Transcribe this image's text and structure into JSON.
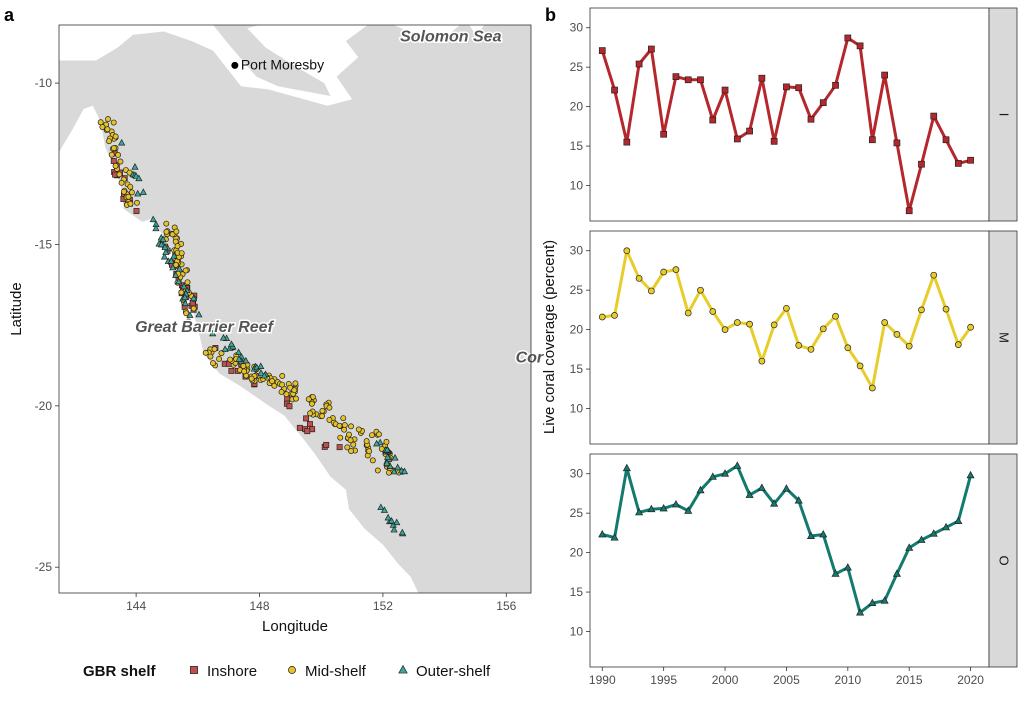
{
  "panels": {
    "a": "a",
    "b": "b"
  },
  "map": {
    "xlabel": "Longitude",
    "ylabel": "Latitude",
    "xlim": [
      141.5,
      156.8
    ],
    "ylim": [
      -25.8,
      -8.2
    ],
    "x_ticks": [
      144,
      148,
      152,
      156
    ],
    "y_ticks": [
      -10,
      -15,
      -20,
      -25
    ],
    "city": {
      "name": "Port Moresby",
      "lon": 147.2,
      "lat": -9.45
    },
    "labels": [
      {
        "text": "Solomon Sea",
        "lon": 154.2,
        "lat": -8.55
      },
      {
        "text": "Great Barrier Reef",
        "lon": 146.2,
        "lat": -17.55
      },
      {
        "text": "Cor",
        "lon": 156.3,
        "lat": -18.5
      }
    ],
    "colors": {
      "sea": "#d9d9d9",
      "land": "#ffffff"
    }
  },
  "legend": {
    "title": "GBR shelf",
    "items": [
      {
        "label": "Inshore",
        "shape": "square",
        "color": "#c0504d"
      },
      {
        "label": "Mid-shelf",
        "shape": "circle",
        "color": "#e6c229"
      },
      {
        "label": "Outer-shelf",
        "shape": "triangle",
        "color": "#3aa89a"
      }
    ]
  },
  "chart_data": {
    "type": "line",
    "ylabel": "Live coral coverage (percent)",
    "xlim": [
      1989,
      2021.5
    ],
    "x_ticks": [
      1990,
      1995,
      2000,
      2005,
      2010,
      2015,
      2020
    ],
    "x": [
      1990,
      1991,
      1992,
      1993,
      1994,
      1995,
      1996,
      1997,
      1998,
      1999,
      2000,
      2001,
      2002,
      2003,
      2004,
      2005,
      2006,
      2007,
      2008,
      2009,
      2010,
      2011,
      2012,
      2013,
      2014,
      2015,
      2016,
      2017,
      2018,
      2019,
      2020
    ],
    "facets": [
      {
        "strip": "I",
        "color": "#b5272c",
        "marker": "square",
        "ylim": [
          5.5,
          32.5
        ],
        "y_ticks": [
          10,
          15,
          20,
          25,
          30
        ],
        "values": [
          27.1,
          22.1,
          15.5,
          25.4,
          27.3,
          16.5,
          23.8,
          23.4,
          23.4,
          18.3,
          22.1,
          15.9,
          16.9,
          23.6,
          15.6,
          22.5,
          22.4,
          18.4,
          20.5,
          22.7,
          28.7,
          27.7,
          15.8,
          24.0,
          15.4,
          6.8,
          12.7,
          18.8,
          15.8,
          12.8,
          13.2
        ]
      },
      {
        "strip": "M",
        "color": "#e8cd2a",
        "marker": "circle",
        "ylim": [
          5.5,
          32.5
        ],
        "y_ticks": [
          10,
          15,
          20,
          25,
          30
        ],
        "values": [
          21.6,
          21.8,
          30.0,
          26.5,
          24.9,
          27.3,
          27.6,
          22.1,
          25.0,
          22.3,
          20.0,
          20.9,
          20.7,
          16.0,
          20.6,
          22.7,
          18.0,
          17.5,
          20.1,
          21.7,
          17.7,
          15.4,
          12.6,
          20.9,
          19.4,
          17.9,
          22.5,
          26.9,
          22.6,
          18.1,
          20.3
        ]
      },
      {
        "strip": "O",
        "color": "#137a6f",
        "marker": "triangle",
        "ylim": [
          5.5,
          32.5
        ],
        "y_ticks": [
          10,
          15,
          20,
          25,
          30
        ],
        "values": [
          22.3,
          21.9,
          30.7,
          25.1,
          25.5,
          25.6,
          26.1,
          25.3,
          27.9,
          29.6,
          30.0,
          31.0,
          27.3,
          28.2,
          26.2,
          28.1,
          26.6,
          22.1,
          22.3,
          17.3,
          18.1,
          12.4,
          13.6,
          13.9,
          17.3,
          20.6,
          21.6,
          22.4,
          23.2,
          24.0,
          29.8
        ]
      }
    ]
  }
}
